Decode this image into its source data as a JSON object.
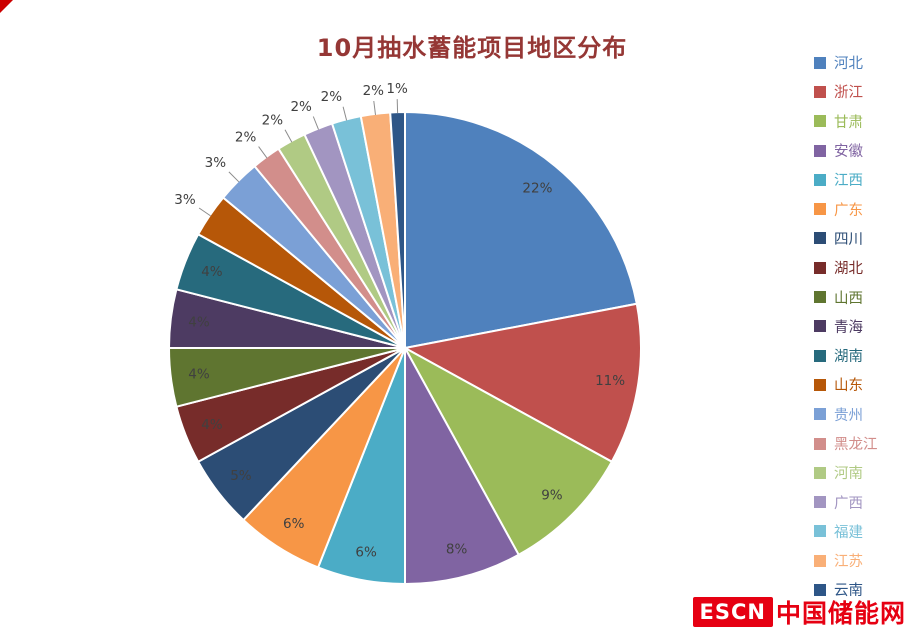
{
  "title": "10月抽水蓄能项目地区分布",
  "chart_data": {
    "type": "pie",
    "title": "10月抽水蓄能项目地区分布",
    "title_color": "#953735",
    "unit": "%",
    "legend_position": "right",
    "label_color": "#404040",
    "leader_line_color": "#8c8c8c",
    "start_angle": 0,
    "direction": "clockwise",
    "categories": [
      "河北",
      "浙江",
      "甘肃",
      "安徽",
      "江西",
      "广东",
      "四川",
      "湖北",
      "山西",
      "青海",
      "湖南",
      "山东",
      "贵州",
      "黑龙江",
      "河南",
      "广西",
      "福建",
      "江苏",
      "云南"
    ],
    "values": [
      22,
      11,
      9,
      8,
      6,
      6,
      5,
      4,
      4,
      4,
      4,
      3,
      3,
      2,
      2,
      2,
      2,
      2,
      1
    ],
    "colors": [
      "#4F81BD",
      "#C0504D",
      "#9BBB59",
      "#8064A2",
      "#4BACC6",
      "#F79646",
      "#2C4D75",
      "#772C2A",
      "#5F7530",
      "#4D3B62",
      "#276A7D",
      "#B65708",
      "#7BA0D6",
      "#D28E8B",
      "#B0CA84",
      "#A295C1",
      "#79C1D8",
      "#F9AF77",
      "#2E5687"
    ]
  },
  "watermark": {
    "logo_text": "ESCN",
    "site_name": "中国储能网",
    "logo_bg": "#E60012",
    "logo_fg": "#FFFFFF",
    "site_color": "#E60012"
  },
  "decorations": {
    "corner_mark_color": "#CC0000"
  }
}
